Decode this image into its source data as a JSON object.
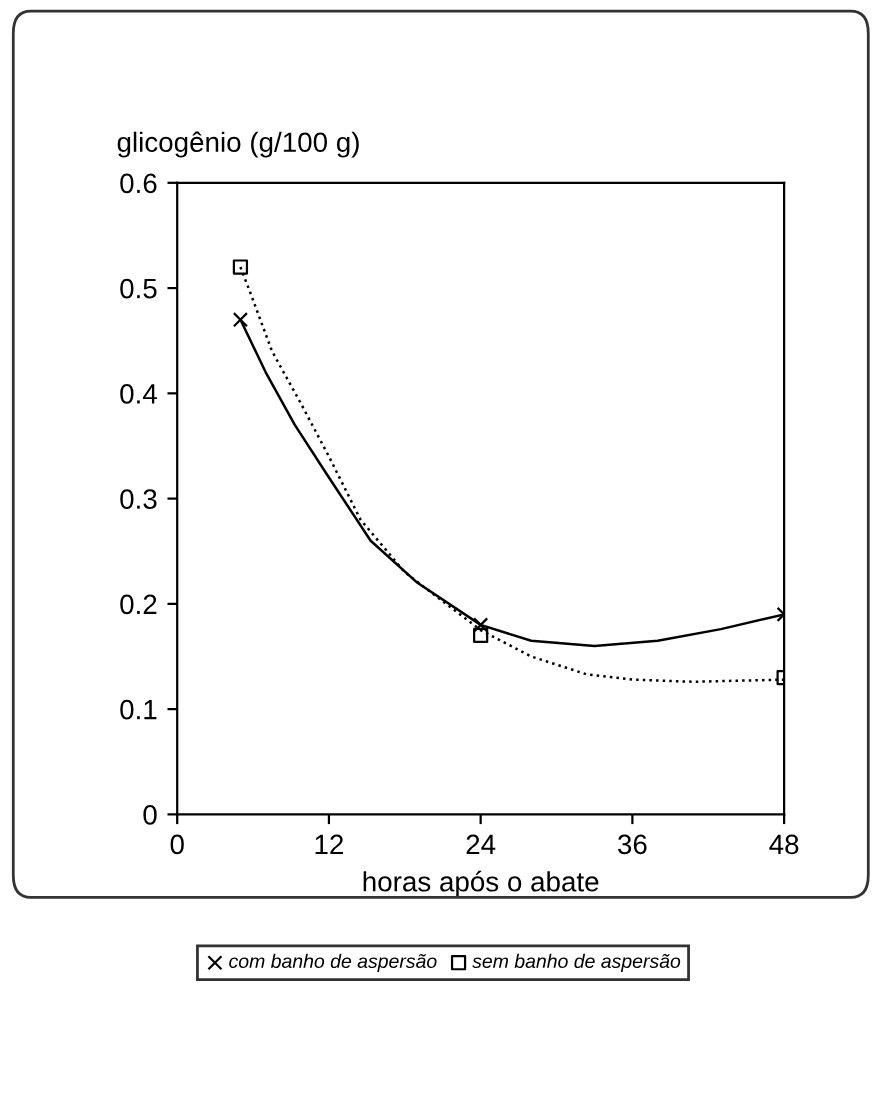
{
  "chart_data": {
    "type": "scatter",
    "ylabel": "glicogênio (g/100 g)",
    "xlabel": "horas após o abate",
    "xlim": [
      0,
      48
    ],
    "xticks": [
      0,
      12,
      24,
      36,
      48
    ],
    "ylim": [
      0,
      0.6
    ],
    "yticks": [
      0,
      0.1,
      0.2,
      0.3,
      0.4,
      0.5,
      0.6
    ],
    "grid": false,
    "legend": "bottom",
    "series": [
      {
        "name": "com banho de aspersão",
        "marker": "cross",
        "color": "#000000",
        "x": [
          5,
          24,
          48
        ],
        "values": [
          0.47,
          0.18,
          0.19
        ]
      },
      {
        "name": "sem banho de aspersão",
        "marker": "square",
        "color": "#000000",
        "x": [
          5,
          24,
          48
        ],
        "values": [
          0.52,
          0.17,
          0.13
        ]
      },
      {
        "type": "line",
        "line_style": "solid",
        "color": "#000000",
        "x": [
          5,
          7,
          9.3,
          12,
          15.3,
          19,
          24,
          28,
          33,
          38,
          43,
          48
        ],
        "values": [
          0.47,
          0.42,
          0.37,
          0.32,
          0.26,
          0.22,
          0.18,
          0.165,
          0.16,
          0.165,
          0.176,
          0.19
        ]
      },
      {
        "type": "line",
        "line_style": "dotted",
        "color": "#000000",
        "x": [
          5,
          5.8,
          7.5,
          9.8,
          12,
          14.5,
          18,
          24,
          28,
          32.4,
          36,
          40.8,
          48
        ],
        "values": [
          0.52,
          0.495,
          0.44,
          0.39,
          0.34,
          0.28,
          0.23,
          0.175,
          0.15,
          0.133,
          0.128,
          0.126,
          0.128
        ]
      }
    ]
  }
}
